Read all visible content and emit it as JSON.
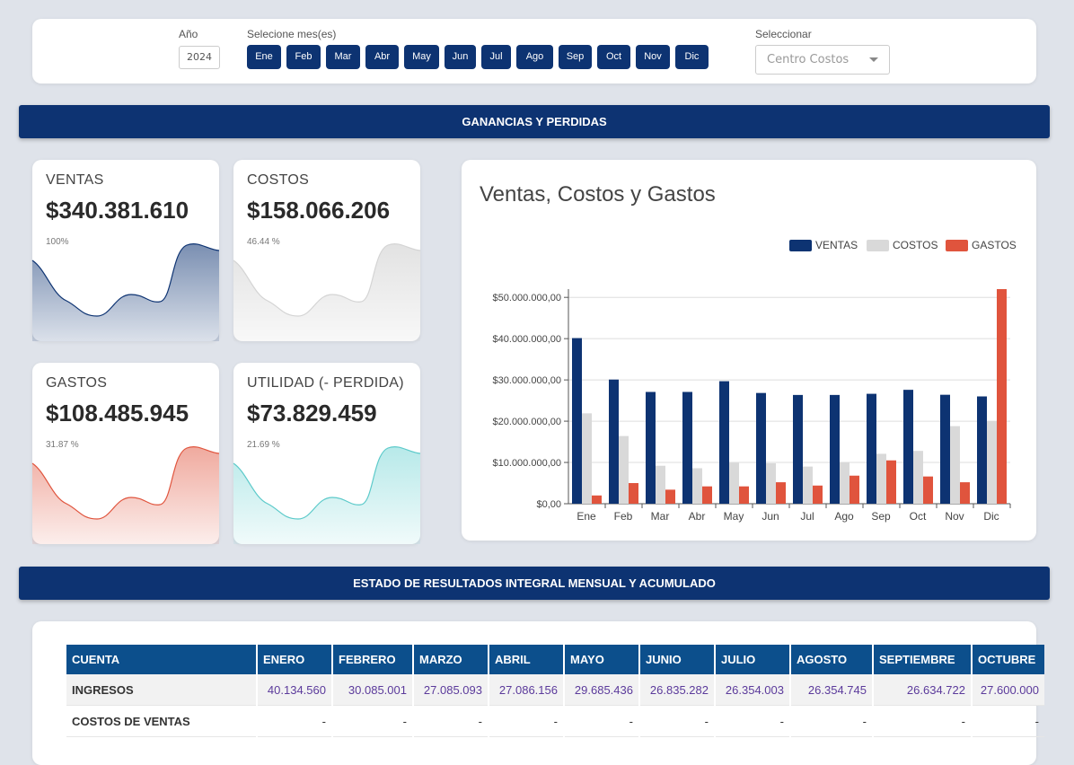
{
  "filters": {
    "year_label": "Año",
    "year_value": "2024",
    "months_label": "Selecione mes(es)",
    "months": [
      "Ene",
      "Feb",
      "Mar",
      "Abr",
      "May",
      "Jun",
      "Jul",
      "Ago",
      "Sep",
      "Oct",
      "Nov",
      "Dic"
    ],
    "select_label": "Seleccionar",
    "select_placeholder": "Centro Costos"
  },
  "section1": {
    "title": "GANANCIAS Y PERDIDAS"
  },
  "section2": {
    "title": "ESTADO DE RESULTADOS INTEGRAL MENSUAL Y ACUMULADO"
  },
  "cards": [
    {
      "title": "VENTAS",
      "value": "$340.381.610",
      "percent": "100%",
      "color": "#0d3372"
    },
    {
      "title": "COSTOS",
      "value": "$158.066.206",
      "percent": "46.44 %",
      "color": "#cfcfcf"
    },
    {
      "title": "GASTOS",
      "value": "$108.485.945",
      "percent": "31.87 %",
      "color": "#e0543d"
    },
    {
      "title": "UTILIDAD (- PERDIDA)",
      "value": "$73.829.459",
      "percent": "21.69 %",
      "color": "#6fd3d3"
    }
  ],
  "chart_data": {
    "type": "bar",
    "title": "Ventas, Costos y Gastos",
    "categories": [
      "Ene",
      "Feb",
      "Mar",
      "Abr",
      "May",
      "Jun",
      "Jul",
      "Ago",
      "Sep",
      "Oct",
      "Nov",
      "Dic"
    ],
    "series": [
      {
        "name": "VENTAS",
        "color": "#0d3372",
        "values": [
          40134560,
          30085001,
          27085093,
          27086156,
          29685436,
          26835282,
          26354003,
          26354745,
          26634722,
          27600000,
          26400000,
          26000000
        ]
      },
      {
        "name": "COSTOS",
        "color": "#d9d9d9",
        "values": [
          21900000,
          16400000,
          9200000,
          8600000,
          9900000,
          9800000,
          9000000,
          10000000,
          12100000,
          12800000,
          18800000,
          20000000
        ]
      },
      {
        "name": "GASTOS",
        "color": "#e0543d",
        "values": [
          2000000,
          5000000,
          3400000,
          4200000,
          4200000,
          5200000,
          4400000,
          6800000,
          10500000,
          6600000,
          5200000,
          52000000
        ]
      }
    ],
    "y_ticks": [
      "$0,00",
      "$10.000.000,00",
      "$20.000.000,00",
      "$30.000.000,00",
      "$40.000.000,00",
      "$50.000.000,00"
    ],
    "ylim": [
      0,
      52000000
    ],
    "legend_position": "top-right",
    "grid": true
  },
  "table": {
    "headers": [
      "CUENTA",
      "ENERO",
      "FEBRERO",
      "MARZO",
      "ABRIL",
      "MAYO",
      "JUNIO",
      "JULIO",
      "AGOSTO",
      "SEPTIEMBRE",
      "OCTUBRE"
    ],
    "rows": [
      [
        "INGRESOS",
        "40.134.560",
        "30.085.001",
        "27.085.093",
        "27.086.156",
        "29.685.436",
        "26.835.282",
        "26.354.003",
        "26.354.745",
        "26.634.722",
        "27.600.000"
      ],
      [
        "COSTOS DE VENTAS",
        "-",
        "-",
        "-",
        "-",
        "-",
        "-",
        "-",
        "-",
        "-",
        "-"
      ]
    ]
  }
}
